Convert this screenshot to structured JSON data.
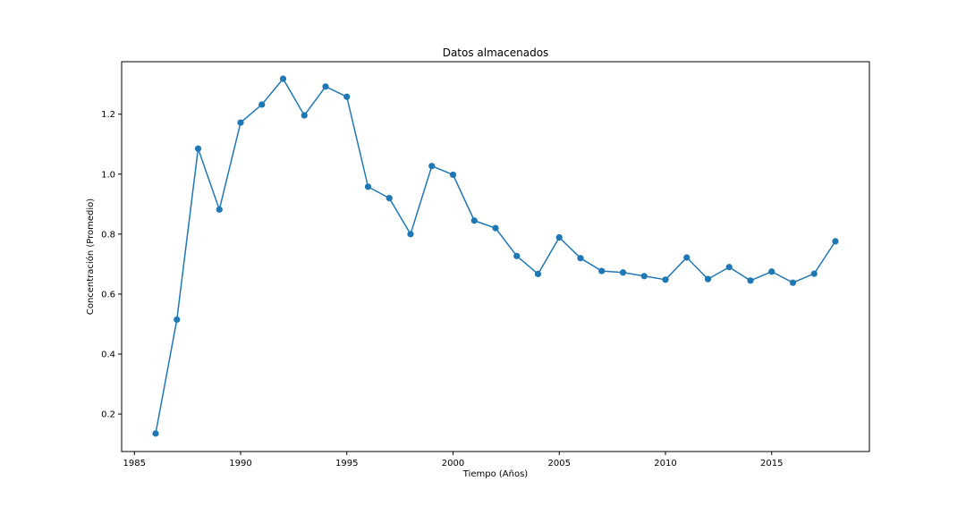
{
  "chart_data": {
    "type": "line",
    "title": "Datos almacenados",
    "xlabel": "Tiempo (Años)",
    "ylabel": "Concentración (Promedio)",
    "xlim": [
      1984.4,
      2019.6
    ],
    "ylim": [
      0.075,
      1.375
    ],
    "xticks": [
      1985,
      1990,
      1995,
      2000,
      2005,
      2010,
      2015
    ],
    "xtick_labels": [
      "1985",
      "1990",
      "1995",
      "2000",
      "2005",
      "2010",
      "2015"
    ],
    "yticks": [
      0.2,
      0.4,
      0.6,
      0.8,
      1.0,
      1.2
    ],
    "ytick_labels": [
      "0.2",
      "0.4",
      "0.6",
      "0.8",
      "1.0",
      "1.2"
    ],
    "grid": false,
    "colors": {
      "series": "#1f77b4"
    },
    "series": [
      {
        "x": [
          1986,
          1987,
          1988,
          1989,
          1990,
          1991,
          1992,
          1993,
          1994,
          1995,
          1996,
          1997,
          1998,
          1999,
          2000,
          2001,
          2002,
          2003,
          2004,
          2005,
          2006,
          2007,
          2008,
          2009,
          2010,
          2011,
          2012,
          2013,
          2014,
          2015,
          2016,
          2017,
          2018
        ],
        "values": [
          0.135,
          0.515,
          1.085,
          0.882,
          1.172,
          1.232,
          1.318,
          1.196,
          1.292,
          1.258,
          0.958,
          0.92,
          0.8,
          1.027,
          0.998,
          0.845,
          0.82,
          0.727,
          0.667,
          0.789,
          0.72,
          0.677,
          0.672,
          0.66,
          0.648,
          0.722,
          0.65,
          0.69,
          0.645,
          0.675,
          0.638,
          0.668,
          0.776
        ]
      }
    ]
  }
}
